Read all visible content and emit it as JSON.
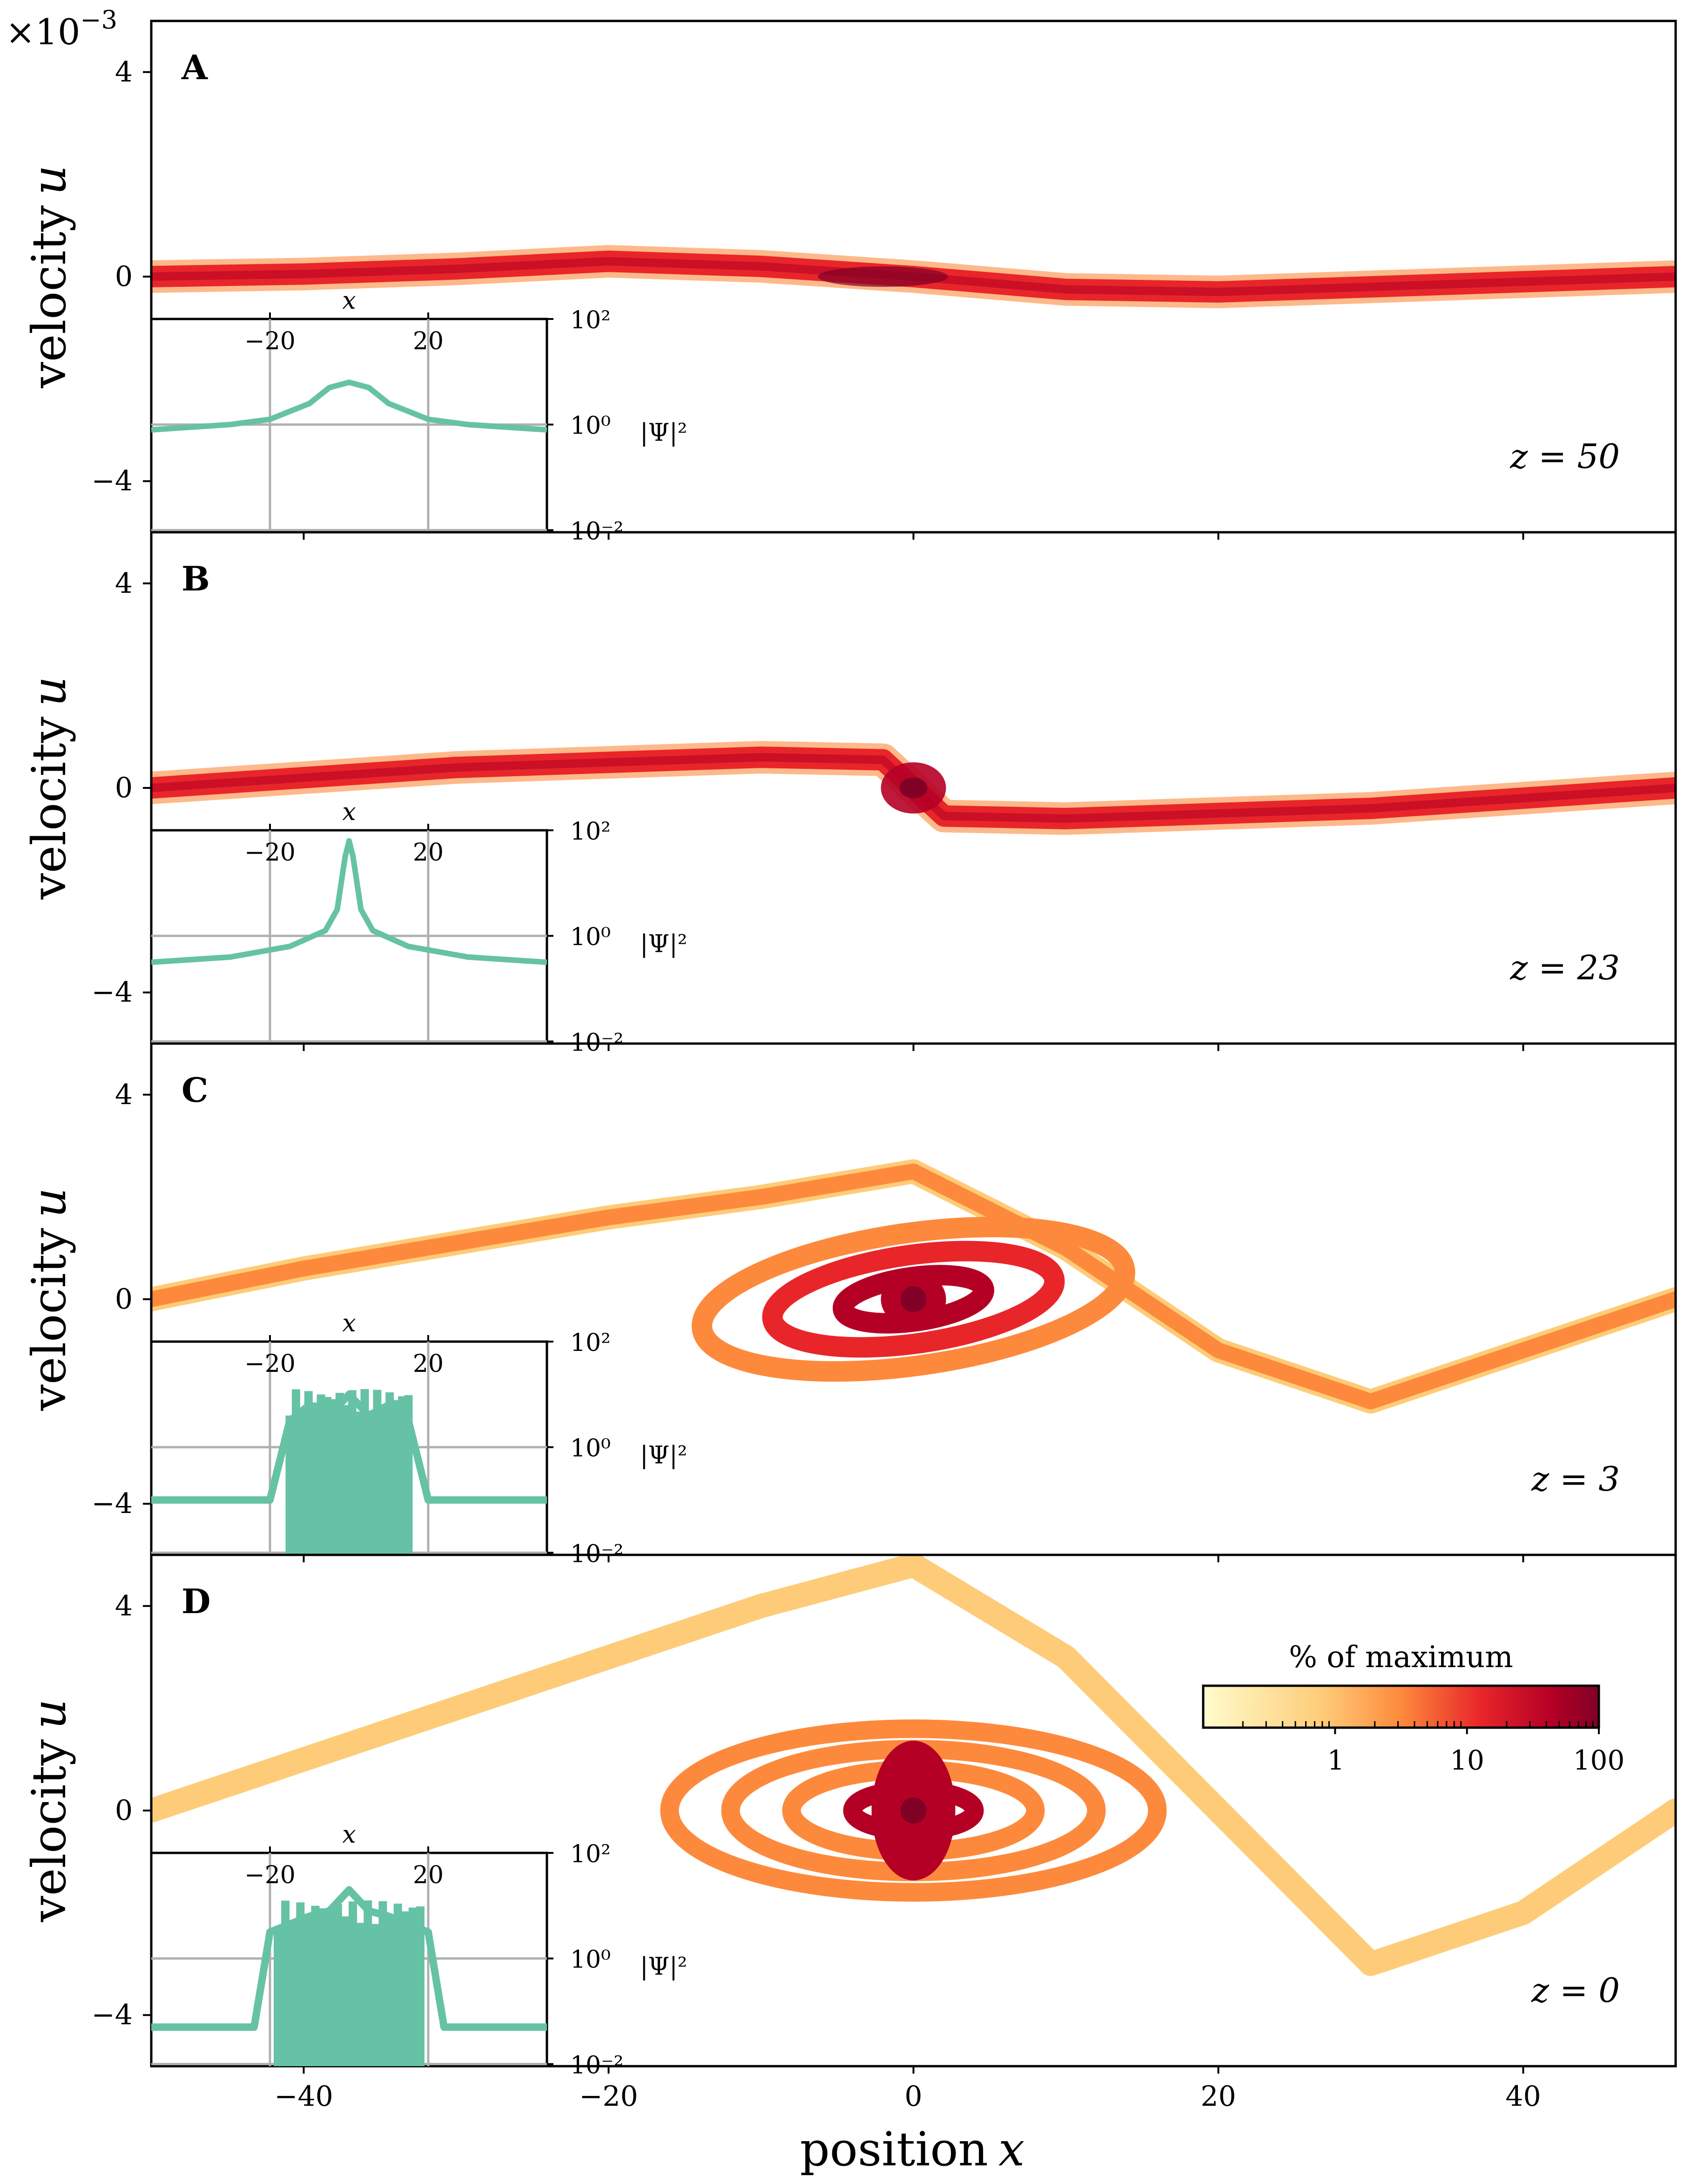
{
  "figure": {
    "y_exponent_label": "×10",
    "y_exponent_power": "−3",
    "xlabel_word": "position",
    "xlabel_var": "x",
    "ylabel_word": "velocity",
    "ylabel_var": "u",
    "colorbar": {
      "title": "% of maximum",
      "tick_labels": [
        "1",
        "10",
        "100"
      ],
      "colors": [
        "#fffccc",
        "#fecc79",
        "#fd8a3c",
        "#e8262a",
        "#b50026",
        "#800026"
      ]
    },
    "inset_common": {
      "xlabel": "x",
      "ylabel": "|Ψ|²",
      "xtick_labels": [
        "−20",
        "20"
      ],
      "ytick_labels": [
        "10²",
        "10⁰",
        "10⁻²"
      ],
      "line_color": "#66c2a5"
    }
  },
  "chart_data": [
    {
      "type": "heatmap",
      "panel": "A",
      "annotation": "z = 50",
      "x": [
        -50,
        -40,
        -30,
        -20,
        -10,
        0,
        10,
        20,
        30,
        40,
        50
      ],
      "u_centerline_e3": [
        0.0,
        0.05,
        0.15,
        0.3,
        0.2,
        0.0,
        -0.25,
        -0.3,
        -0.2,
        -0.1,
        0.0
      ],
      "xlim": [
        -50,
        50
      ],
      "ylim_e3": [
        -5,
        5
      ],
      "xticks": [
        -40,
        -20,
        0,
        20,
        40
      ],
      "yticks": [
        -4,
        0,
        4
      ],
      "xtick_labels": [
        "−40",
        "−20",
        "0",
        "20",
        "40"
      ],
      "ytick_labels": [
        "−4",
        "0",
        "4"
      ],
      "inset": {
        "type": "line",
        "xlim": [
          -50,
          50
        ],
        "ylim_log10": [
          -2,
          2
        ],
        "x": [
          -50,
          -30,
          -20,
          -10,
          -5,
          0,
          5,
          10,
          20,
          30,
          50
        ],
        "log10_psi2": [
          -0.1,
          0.0,
          0.1,
          0.4,
          0.7,
          0.8,
          0.7,
          0.4,
          0.1,
          0.0,
          -0.1
        ]
      }
    },
    {
      "type": "heatmap",
      "panel": "B",
      "annotation": "z = 23",
      "x": [
        -50,
        -40,
        -30,
        -20,
        -10,
        -2,
        0,
        2,
        10,
        20,
        30,
        40,
        50
      ],
      "u_centerline_e3": [
        0.0,
        0.2,
        0.4,
        0.5,
        0.6,
        0.55,
        0.0,
        -0.55,
        -0.6,
        -0.5,
        -0.4,
        -0.2,
        0.0
      ],
      "xlim": [
        -50,
        50
      ],
      "ylim_e3": [
        -5,
        5
      ],
      "xticks": [
        -40,
        -20,
        0,
        20,
        40
      ],
      "yticks": [
        -4,
        0,
        4
      ],
      "xtick_labels": [
        "−40",
        "−20",
        "0",
        "20",
        "40"
      ],
      "ytick_labels": [
        "−4",
        "0",
        "4"
      ],
      "inset": {
        "type": "line",
        "xlim": [
          -50,
          50
        ],
        "ylim_log10": [
          -2,
          2
        ],
        "x": [
          -50,
          -30,
          -15,
          -6,
          -3,
          -1,
          0,
          1,
          3,
          6,
          15,
          30,
          50
        ],
        "log10_psi2": [
          -0.5,
          -0.4,
          -0.2,
          0.1,
          0.5,
          1.5,
          1.8,
          1.5,
          0.5,
          0.1,
          -0.2,
          -0.4,
          -0.5
        ]
      }
    },
    {
      "type": "heatmap",
      "panel": "C",
      "annotation": "z = 3",
      "x": [
        -50,
        -40,
        -30,
        -20,
        -10,
        0,
        10,
        20,
        30,
        40,
        50
      ],
      "u_centerline_e3": [
        0.0,
        0.6,
        1.1,
        1.6,
        2.0,
        2.5,
        1.0,
        -1.0,
        -2.0,
        -1.0,
        0.0
      ],
      "spiral_center": [
        0,
        0
      ],
      "xlim": [
        -50,
        50
      ],
      "ylim_e3": [
        -5,
        5
      ],
      "xticks": [
        -40,
        -20,
        0,
        20,
        40
      ],
      "yticks": [
        -4,
        0,
        4
      ],
      "xtick_labels": [
        "−40",
        "−20",
        "0",
        "20",
        "40"
      ],
      "ytick_labels": [
        "−4",
        "0",
        "4"
      ],
      "inset": {
        "type": "line",
        "xlim": [
          -50,
          50
        ],
        "ylim_log10": [
          -2,
          2
        ],
        "x": [
          -50,
          -20,
          -15,
          -10,
          -5,
          0,
          5,
          10,
          15,
          20,
          50
        ],
        "log10_psi2": [
          -1.0,
          -1.0,
          0.5,
          0.8,
          0.6,
          1.0,
          0.6,
          0.8,
          0.5,
          -1.0,
          -1.0
        ]
      }
    },
    {
      "type": "heatmap",
      "panel": "D",
      "annotation": "z = 0",
      "x": [
        -50,
        -40,
        -30,
        -20,
        -10,
        0,
        10,
        20,
        30,
        40,
        50
      ],
      "u_centerline_e3": [
        0.0,
        1.0,
        2.0,
        3.0,
        4.0,
        4.8,
        3.0,
        0.0,
        -3.0,
        -2.0,
        0.0
      ],
      "spiral_center": [
        0,
        0
      ],
      "xlim": [
        -50,
        50
      ],
      "ylim_e3": [
        -5,
        5
      ],
      "xticks": [
        -40,
        -20,
        0,
        20,
        40
      ],
      "yticks": [
        -4,
        0,
        4
      ],
      "xtick_labels": [
        "−40",
        "−20",
        "0",
        "20",
        "40"
      ],
      "ytick_labels": [
        "−4",
        "0",
        "4"
      ],
      "inset": {
        "type": "line",
        "xlim": [
          -50,
          50
        ],
        "ylim_log10": [
          -2,
          2
        ],
        "x": [
          -50,
          -24,
          -20,
          -10,
          -5,
          0,
          5,
          10,
          20,
          24,
          50
        ],
        "log10_psi2": [
          -1.3,
          -1.3,
          0.5,
          0.8,
          0.9,
          1.3,
          0.9,
          0.8,
          0.5,
          -1.3,
          -1.3
        ]
      }
    }
  ]
}
